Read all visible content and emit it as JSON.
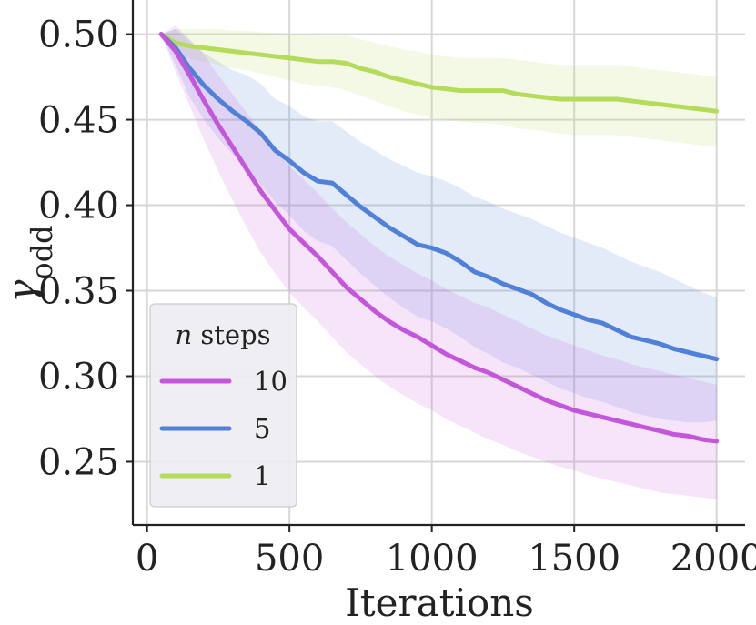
{
  "chart_data": {
    "type": "line",
    "title": "",
    "xlabel": "Iterations",
    "ylabel": "γodd",
    "ylabel_base": "γ",
    "ylabel_sub": "odd",
    "xlim": [
      -50,
      2100
    ],
    "ylim": [
      0.213,
      0.52
    ],
    "xticks": [
      0,
      500,
      1000,
      1500,
      2000
    ],
    "xtick_labels": [
      "0",
      "500",
      "1000",
      "1500",
      "2000"
    ],
    "yticks": [
      0.25,
      0.3,
      0.35,
      0.4,
      0.45,
      0.5
    ],
    "ytick_labels": [
      "0.25",
      "0.30",
      "0.35",
      "0.40",
      "0.45",
      "0.50"
    ],
    "grid": true,
    "legend": {
      "placement": "lower-left",
      "title_italic": "n",
      "title_rest": " steps"
    },
    "series": [
      {
        "name": "10",
        "color": "#c456dc",
        "x": [
          50,
          100,
          150,
          200,
          250,
          300,
          350,
          400,
          450,
          500,
          550,
          600,
          650,
          700,
          750,
          800,
          850,
          900,
          950,
          1000,
          1050,
          1100,
          1150,
          1200,
          1250,
          1300,
          1350,
          1400,
          1450,
          1500,
          1550,
          1600,
          1650,
          1700,
          1750,
          1800,
          1850,
          1900,
          1950,
          2000
        ],
        "y": [
          0.5,
          0.49,
          0.476,
          0.461,
          0.447,
          0.434,
          0.421,
          0.408,
          0.397,
          0.386,
          0.378,
          0.37,
          0.361,
          0.352,
          0.345,
          0.338,
          0.332,
          0.327,
          0.323,
          0.318,
          0.313,
          0.309,
          0.305,
          0.302,
          0.298,
          0.294,
          0.29,
          0.286,
          0.283,
          0.28,
          0.278,
          0.276,
          0.274,
          0.272,
          0.27,
          0.268,
          0.266,
          0.265,
          0.263,
          0.262
        ],
        "lower": [
          0.5,
          0.478,
          0.458,
          0.438,
          0.42,
          0.403,
          0.387,
          0.372,
          0.36,
          0.349,
          0.34,
          0.332,
          0.323,
          0.314,
          0.307,
          0.3,
          0.294,
          0.289,
          0.284,
          0.28,
          0.275,
          0.271,
          0.267,
          0.263,
          0.26,
          0.256,
          0.253,
          0.25,
          0.247,
          0.245,
          0.242,
          0.24,
          0.238,
          0.236,
          0.234,
          0.232,
          0.231,
          0.23,
          0.229,
          0.228
        ],
        "upper": [
          0.5,
          0.505,
          0.497,
          0.488,
          0.476,
          0.465,
          0.454,
          0.443,
          0.433,
          0.423,
          0.415,
          0.407,
          0.398,
          0.39,
          0.383,
          0.376,
          0.37,
          0.365,
          0.36,
          0.356,
          0.351,
          0.347,
          0.343,
          0.34,
          0.336,
          0.332,
          0.328,
          0.324,
          0.321,
          0.318,
          0.315,
          0.312,
          0.31,
          0.307,
          0.305,
          0.303,
          0.301,
          0.299,
          0.297,
          0.295
        ]
      },
      {
        "name": "5",
        "color": "#5080d8",
        "x": [
          50,
          100,
          150,
          200,
          250,
          300,
          350,
          400,
          450,
          500,
          550,
          600,
          650,
          700,
          750,
          800,
          850,
          900,
          950,
          1000,
          1050,
          1100,
          1150,
          1200,
          1250,
          1300,
          1350,
          1400,
          1450,
          1500,
          1550,
          1600,
          1650,
          1700,
          1750,
          1800,
          1850,
          1900,
          1950,
          2000
        ],
        "y": [
          0.5,
          0.492,
          0.48,
          0.47,
          0.462,
          0.455,
          0.449,
          0.442,
          0.432,
          0.426,
          0.419,
          0.414,
          0.413,
          0.406,
          0.399,
          0.393,
          0.387,
          0.382,
          0.377,
          0.375,
          0.372,
          0.367,
          0.361,
          0.358,
          0.354,
          0.351,
          0.348,
          0.343,
          0.339,
          0.336,
          0.333,
          0.331,
          0.327,
          0.323,
          0.321,
          0.319,
          0.316,
          0.314,
          0.312,
          0.31
        ],
        "lower": [
          0.5,
          0.482,
          0.463,
          0.45,
          0.439,
          0.43,
          0.421,
          0.412,
          0.402,
          0.394,
          0.385,
          0.379,
          0.376,
          0.368,
          0.36,
          0.353,
          0.346,
          0.34,
          0.335,
          0.332,
          0.328,
          0.323,
          0.317,
          0.313,
          0.308,
          0.305,
          0.301,
          0.297,
          0.293,
          0.29,
          0.287,
          0.285,
          0.282,
          0.279,
          0.277,
          0.275,
          0.274,
          0.273,
          0.273,
          0.274
        ],
        "upper": [
          0.5,
          0.503,
          0.496,
          0.489,
          0.484,
          0.479,
          0.476,
          0.471,
          0.462,
          0.458,
          0.452,
          0.449,
          0.449,
          0.443,
          0.437,
          0.432,
          0.427,
          0.423,
          0.419,
          0.417,
          0.414,
          0.41,
          0.405,
          0.402,
          0.398,
          0.395,
          0.392,
          0.388,
          0.384,
          0.381,
          0.378,
          0.375,
          0.371,
          0.367,
          0.364,
          0.361,
          0.357,
          0.353,
          0.349,
          0.346
        ]
      },
      {
        "name": "1",
        "color": "#b4dc5a",
        "x": [
          50,
          100,
          150,
          200,
          250,
          300,
          350,
          400,
          450,
          500,
          550,
          600,
          650,
          700,
          750,
          800,
          850,
          900,
          950,
          1000,
          1050,
          1100,
          1150,
          1200,
          1250,
          1300,
          1350,
          1400,
          1450,
          1500,
          1550,
          1600,
          1650,
          1700,
          1750,
          1800,
          1850,
          1900,
          1950,
          2000
        ],
        "y": [
          0.5,
          0.495,
          0.493,
          0.492,
          0.491,
          0.49,
          0.489,
          0.488,
          0.487,
          0.486,
          0.485,
          0.484,
          0.484,
          0.483,
          0.48,
          0.478,
          0.475,
          0.473,
          0.471,
          0.469,
          0.468,
          0.467,
          0.467,
          0.467,
          0.467,
          0.465,
          0.464,
          0.463,
          0.462,
          0.462,
          0.462,
          0.462,
          0.462,
          0.461,
          0.46,
          0.459,
          0.458,
          0.457,
          0.456,
          0.455
        ],
        "lower": [
          0.5,
          0.49,
          0.486,
          0.484,
          0.482,
          0.48,
          0.479,
          0.477,
          0.475,
          0.473,
          0.471,
          0.47,
          0.469,
          0.467,
          0.464,
          0.461,
          0.458,
          0.455,
          0.453,
          0.451,
          0.45,
          0.449,
          0.448,
          0.448,
          0.447,
          0.445,
          0.444,
          0.443,
          0.442,
          0.441,
          0.441,
          0.441,
          0.441,
          0.44,
          0.439,
          0.438,
          0.437,
          0.436,
          0.435,
          0.434
        ],
        "upper": [
          0.5,
          0.503,
          0.503,
          0.503,
          0.503,
          0.502,
          0.502,
          0.501,
          0.501,
          0.5,
          0.5,
          0.499,
          0.499,
          0.499,
          0.497,
          0.495,
          0.493,
          0.491,
          0.49,
          0.488,
          0.487,
          0.486,
          0.486,
          0.486,
          0.486,
          0.485,
          0.484,
          0.483,
          0.482,
          0.482,
          0.482,
          0.482,
          0.482,
          0.481,
          0.48,
          0.479,
          0.478,
          0.477,
          0.476,
          0.475
        ]
      }
    ]
  }
}
